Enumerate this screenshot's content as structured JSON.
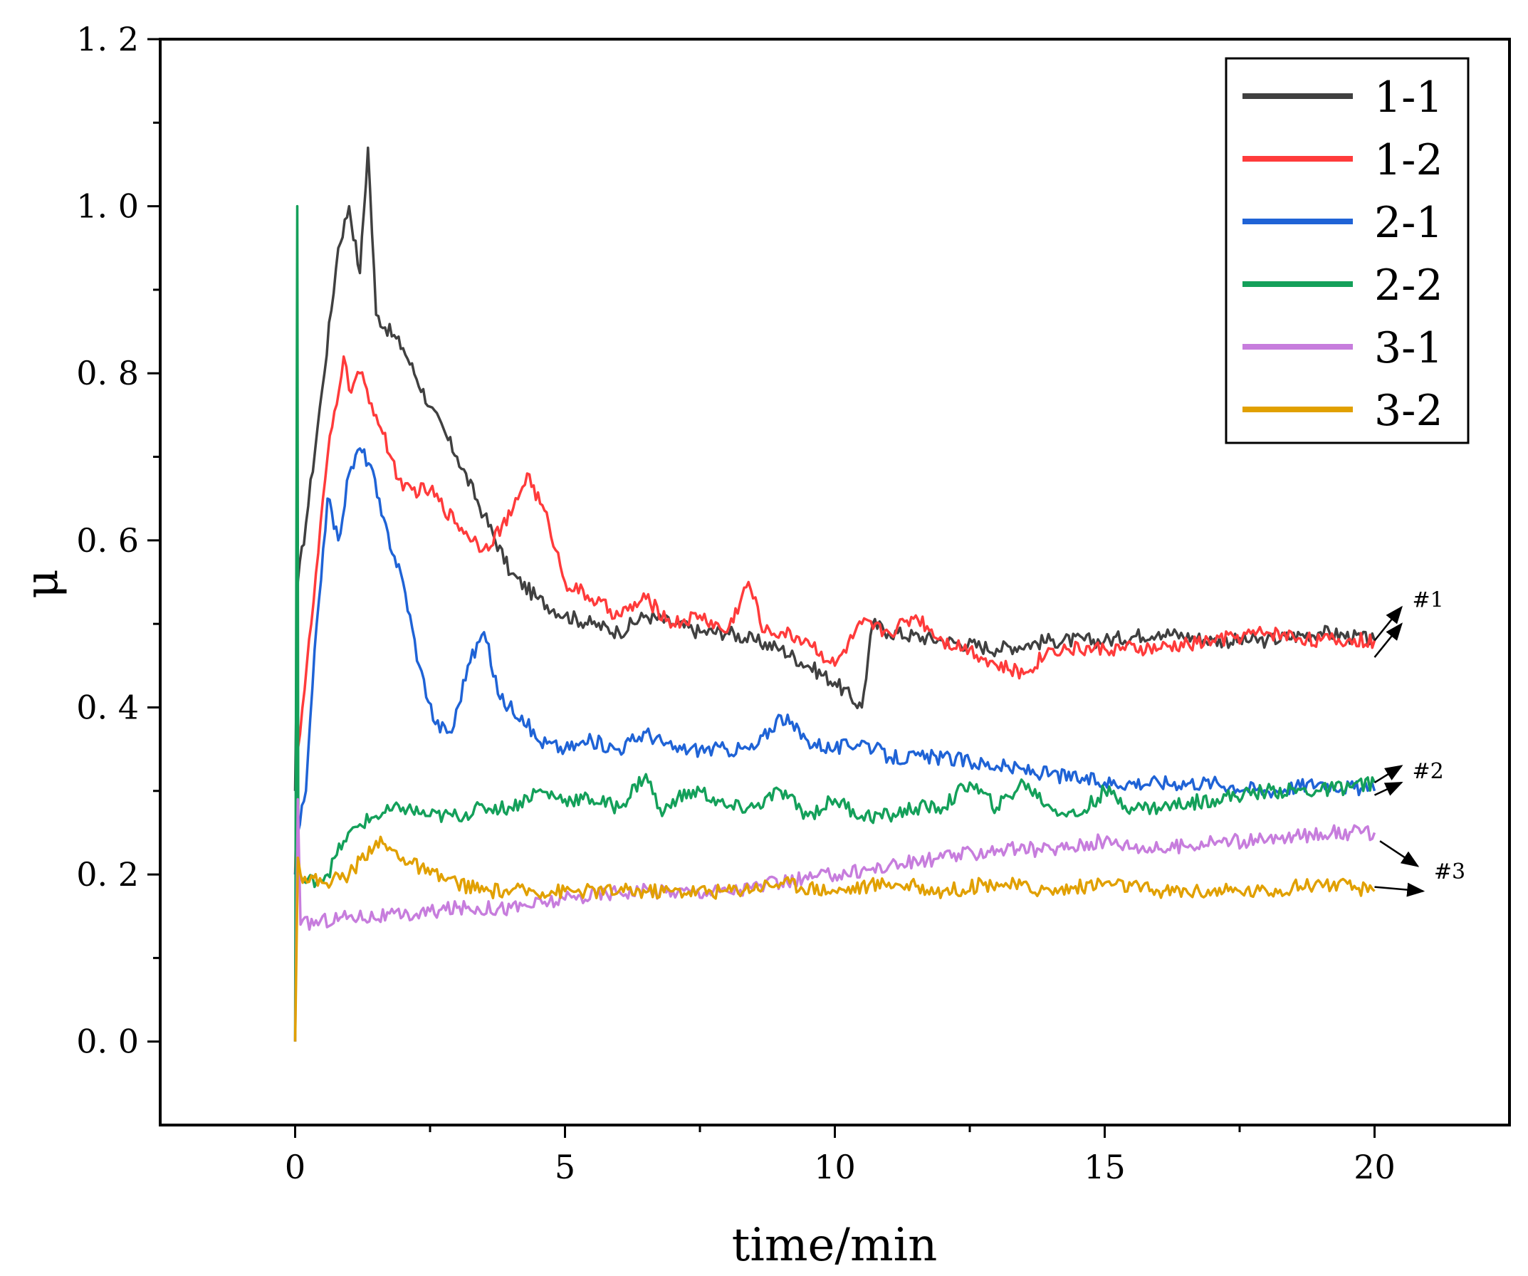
{
  "chart_data": {
    "type": "line",
    "title": "",
    "xlabel": "time/min",
    "ylabel": "μ",
    "xlim": [
      -2.5,
      22.5
    ],
    "ylim": [
      -0.1,
      1.2
    ],
    "x_ticks": [
      0,
      5,
      10,
      15,
      20
    ],
    "x_tick_labels": [
      "0",
      "5",
      "10",
      "15",
      "20"
    ],
    "y_ticks": [
      0.0,
      0.2,
      0.4,
      0.6,
      0.8,
      1.0,
      1.2
    ],
    "y_tick_labels": [
      "0. 0",
      "0. 2",
      "0. 4",
      "0. 6",
      "0. 8",
      "1. 0",
      "1. 2"
    ],
    "grid": false,
    "legend_position": "top-right",
    "series": [
      {
        "name": "1-1",
        "color": "#404040",
        "x": [
          0,
          0.05,
          0.2,
          0.5,
          0.8,
          1.0,
          1.2,
          1.35,
          1.5,
          2.0,
          2.5,
          3.0,
          3.5,
          4.0,
          4.5,
          5.0,
          5.5,
          6.0,
          6.5,
          7.0,
          7.5,
          8.0,
          8.5,
          9.0,
          9.5,
          10.0,
          10.5,
          10.7,
          11.0,
          12.0,
          13.0,
          14.0,
          15.0,
          16.0,
          17.0,
          18.0,
          19.0,
          20.0
        ],
        "y": [
          0.3,
          0.55,
          0.62,
          0.78,
          0.95,
          1.0,
          0.92,
          1.07,
          0.87,
          0.83,
          0.76,
          0.7,
          0.63,
          0.56,
          0.53,
          0.51,
          0.5,
          0.49,
          0.51,
          0.5,
          0.49,
          0.49,
          0.48,
          0.47,
          0.45,
          0.43,
          0.4,
          0.5,
          0.49,
          0.48,
          0.47,
          0.48,
          0.48,
          0.49,
          0.48,
          0.48,
          0.49,
          0.48
        ]
      },
      {
        "name": "1-2",
        "color": "#ff3b3b",
        "x": [
          0,
          0.05,
          0.3,
          0.6,
          0.9,
          1.0,
          1.2,
          1.5,
          2.0,
          2.5,
          3.0,
          3.5,
          4.0,
          4.3,
          4.7,
          5.0,
          5.5,
          6.0,
          6.5,
          7.0,
          7.5,
          8.0,
          8.4,
          8.7,
          9.0,
          9.5,
          10.0,
          10.5,
          11.0,
          11.5,
          12.0,
          12.5,
          13.0,
          13.5,
          14.0,
          15.0,
          16.0,
          17.0,
          18.0,
          19.0,
          20.0
        ],
        "y": [
          0.2,
          0.35,
          0.5,
          0.7,
          0.82,
          0.78,
          0.8,
          0.75,
          0.66,
          0.66,
          0.62,
          0.59,
          0.63,
          0.68,
          0.62,
          0.55,
          0.53,
          0.51,
          0.53,
          0.5,
          0.51,
          0.49,
          0.55,
          0.49,
          0.49,
          0.48,
          0.45,
          0.5,
          0.49,
          0.51,
          0.48,
          0.47,
          0.45,
          0.44,
          0.47,
          0.47,
          0.47,
          0.48,
          0.49,
          0.48,
          0.48
        ]
      },
      {
        "name": "2-1",
        "color": "#1f63d6",
        "x": [
          0,
          0.05,
          0.2,
          0.4,
          0.6,
          0.8,
          1.0,
          1.2,
          1.4,
          1.6,
          2.0,
          2.3,
          2.6,
          2.9,
          3.2,
          3.5,
          3.8,
          4.2,
          4.5,
          5.0,
          5.5,
          6.0,
          6.5,
          7.0,
          7.5,
          8.0,
          8.5,
          9.0,
          9.5,
          10.0,
          10.5,
          11.0,
          12.0,
          13.0,
          14.0,
          15.0,
          16.0,
          17.0,
          18.0,
          19.0,
          20.0
        ],
        "y": [
          0.2,
          0.25,
          0.3,
          0.5,
          0.65,
          0.6,
          0.68,
          0.71,
          0.69,
          0.63,
          0.55,
          0.45,
          0.38,
          0.37,
          0.45,
          0.49,
          0.41,
          0.39,
          0.36,
          0.35,
          0.36,
          0.35,
          0.37,
          0.35,
          0.35,
          0.35,
          0.35,
          0.39,
          0.36,
          0.35,
          0.36,
          0.34,
          0.34,
          0.33,
          0.32,
          0.31,
          0.31,
          0.31,
          0.3,
          0.31,
          0.3
        ]
      },
      {
        "name": "2-2",
        "color": "#14a05a",
        "x": [
          0,
          0.04,
          0.06,
          0.2,
          0.6,
          0.9,
          1.2,
          1.5,
          2.0,
          2.5,
          3.0,
          3.5,
          4.0,
          4.5,
          5.0,
          5.5,
          6.0,
          6.5,
          6.8,
          7.0,
          7.5,
          8.0,
          8.5,
          9.0,
          9.5,
          10.0,
          10.5,
          11.0,
          11.5,
          12.0,
          12.5,
          13.0,
          13.5,
          14.0,
          14.5,
          15.0,
          15.5,
          16.0,
          17.0,
          18.0,
          19.0,
          20.0
        ],
        "y": [
          0.0,
          1.0,
          0.2,
          0.19,
          0.2,
          0.24,
          0.26,
          0.27,
          0.28,
          0.27,
          0.27,
          0.28,
          0.28,
          0.3,
          0.29,
          0.29,
          0.28,
          0.32,
          0.27,
          0.29,
          0.3,
          0.28,
          0.28,
          0.3,
          0.27,
          0.29,
          0.27,
          0.27,
          0.28,
          0.28,
          0.31,
          0.28,
          0.31,
          0.28,
          0.27,
          0.3,
          0.28,
          0.28,
          0.29,
          0.3,
          0.3,
          0.31
        ]
      },
      {
        "name": "3-1",
        "color": "#c77ddd",
        "x": [
          0,
          0.05,
          0.1,
          1.0,
          2.0,
          3.0,
          4.0,
          5.0,
          6.0,
          7.0,
          8.0,
          9.0,
          10.0,
          11.0,
          12.0,
          13.0,
          14.0,
          15.0,
          16.0,
          17.0,
          18.0,
          19.0,
          20.0
        ],
        "y": [
          0.0,
          0.29,
          0.14,
          0.15,
          0.15,
          0.16,
          0.16,
          0.17,
          0.18,
          0.18,
          0.18,
          0.19,
          0.2,
          0.21,
          0.22,
          0.23,
          0.23,
          0.24,
          0.23,
          0.24,
          0.24,
          0.25,
          0.25
        ]
      },
      {
        "name": "3-2",
        "color": "#e1a000",
        "x": [
          0,
          0.05,
          0.1,
          0.5,
          1.0,
          1.5,
          2.0,
          2.5,
          3.0,
          3.5,
          4.0,
          5.0,
          6.0,
          7.0,
          8.0,
          9.0,
          10.0,
          11.0,
          12.0,
          13.0,
          14.0,
          15.0,
          16.0,
          17.0,
          18.0,
          19.0,
          20.0
        ],
        "y": [
          0.0,
          0.22,
          0.2,
          0.19,
          0.2,
          0.24,
          0.22,
          0.2,
          0.19,
          0.18,
          0.18,
          0.18,
          0.18,
          0.18,
          0.18,
          0.19,
          0.18,
          0.19,
          0.18,
          0.19,
          0.18,
          0.19,
          0.18,
          0.18,
          0.18,
          0.19,
          0.18
        ]
      }
    ],
    "annotations": [
      {
        "text": "#1",
        "x": 20.9,
        "y": 0.52,
        "points_to": [
          "1-1",
          "1-2"
        ]
      },
      {
        "text": "#2",
        "x": 20.9,
        "y": 0.31,
        "points_to": [
          "2-1",
          "2-2"
        ]
      },
      {
        "text": "#3",
        "x": 21.3,
        "y": 0.19,
        "points_to": [
          "3-1",
          "3-2"
        ]
      }
    ]
  }
}
